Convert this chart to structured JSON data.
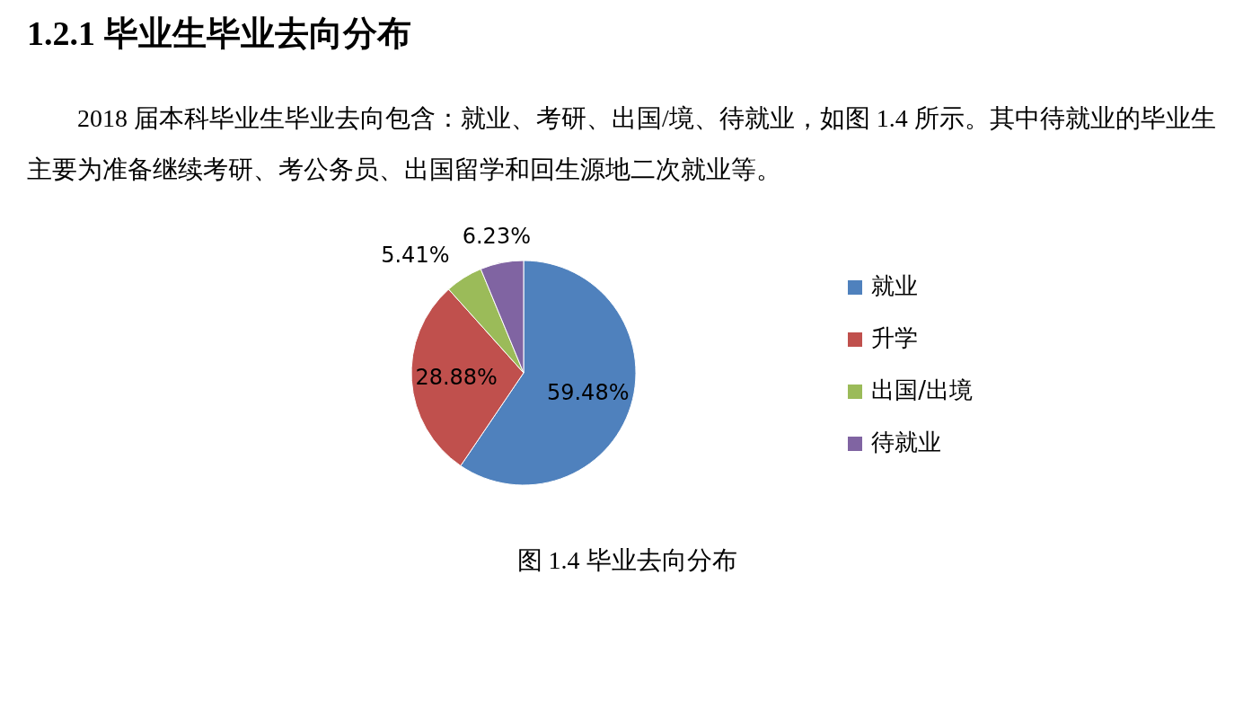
{
  "chart_data": {
    "type": "pie",
    "title": "1.2.1  毕业生毕业去向分布",
    "subtitle": "2018 届本科毕业生毕业去向包含：就业、考研、出国/境、待就业，如图 1.4 所示。其中待就业的毕业生主要为准备继续考研、考公务员、出国留学和回生源地二次就业等。",
    "categories": [
      "就业",
      "升学",
      "出国/出境",
      "待就业"
    ],
    "values": [
      59.48,
      28.88,
      5.41,
      6.23
    ],
    "colors": [
      "#4f81bd",
      "#c0504d",
      "#9bbb59",
      "#8064a2"
    ],
    "value_labels": [
      "59.48%",
      "28.88%",
      "5.41%",
      "6.23%"
    ],
    "legend": "right",
    "annotations": [
      "图 1.4  毕业去向分布"
    ]
  }
}
